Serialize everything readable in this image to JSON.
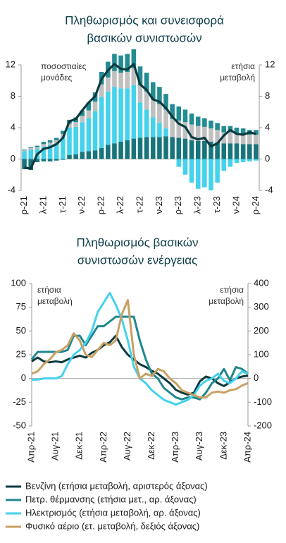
{
  "chart_data": [
    {
      "type": "bar",
      "stacked": true,
      "title": [
        "Πληθωρισμός και συνεισφορά",
        "βασικών συνιστωσών"
      ],
      "ylabel": [
        "ποσοστιαίες",
        "μονάδες"
      ],
      "y2label": [
        "ετήσια",
        "μεταβολή"
      ],
      "categories": [
        "ρ-21",
        null,
        null,
        "λ-21",
        null,
        null,
        "τ-21",
        null,
        null,
        "ν-22",
        null,
        null,
        "ρ-22",
        null,
        null,
        "λ-22",
        null,
        null,
        "τ-22",
        null,
        null,
        "ν-23",
        null,
        null,
        "ρ-23",
        null,
        null,
        "λ-23",
        null,
        null,
        "τ-23",
        null,
        null,
        "ν-24",
        null,
        null,
        "ρ-24"
      ],
      "ylim": [
        -4,
        12
      ],
      "yticks": [
        -4,
        0,
        4,
        8,
        12
      ],
      "y2lim": [
        -4,
        12
      ],
      "y2ticks": [
        -4,
        0,
        4,
        8,
        12
      ],
      "series": [
        {
          "color": "#17747b",
          "values": [
            -1.3,
            -1.4,
            -0.4,
            -0.3,
            -0.3,
            -0.2,
            -0.1,
            0.5,
            0.6,
            0.9,
            1.0,
            1.1,
            1.4,
            1.8,
            2.0,
            2.2,
            2.4,
            2.6,
            2.7,
            2.8,
            2.8,
            2.8,
            2.9,
            2.8,
            2.7,
            2.6,
            2.4,
            2.3,
            2.3,
            2.2,
            2.1,
            2.0,
            2.0,
            2.0,
            1.9,
            1.9,
            1.9
          ]
        },
        {
          "color": "#45d2ec",
          "values": [
            1.0,
            1.2,
            1.3,
            1.6,
            1.8,
            2.0,
            2.8,
            3.5,
            3.5,
            3.8,
            4.2,
            5.0,
            6.5,
            6.8,
            7.2,
            6.8,
            6.6,
            6.8,
            4.5,
            3.5,
            2.5,
            1.8,
            1.0,
            0.0,
            -1.0,
            -2.0,
            -3.0,
            -3.8,
            -3.6,
            -4.0,
            -3.0,
            -1.5,
            -1.0,
            -0.5,
            -0.4,
            -0.3,
            -0.2
          ]
        },
        {
          "color": "#c0c0c0",
          "values": [
            0.1,
            0.2,
            0.2,
            0.3,
            0.3,
            0.4,
            0.4,
            0.5,
            0.6,
            0.8,
            1.0,
            1.2,
            1.6,
            1.8,
            2.0,
            2.0,
            2.1,
            2.2,
            2.2,
            2.3,
            2.3,
            2.4,
            2.4,
            2.3,
            2.2,
            2.1,
            2.0,
            1.9,
            1.8,
            1.7,
            1.6,
            1.4,
            1.4,
            1.3,
            1.3,
            1.2,
            1.2
          ]
        },
        {
          "color": "#238c92",
          "values": [
            0.1,
            0.1,
            0.2,
            0.3,
            0.3,
            0.3,
            0.4,
            0.5,
            0.6,
            0.7,
            1.0,
            1.2,
            1.6,
            2.0,
            2.2,
            2.2,
            2.3,
            2.4,
            2.4,
            2.4,
            2.2,
            2.2,
            2.0,
            1.9,
            1.8,
            1.6,
            1.4,
            1.2,
            1.1,
            1.0,
            0.9,
            0.8,
            0.8,
            0.7,
            0.7,
            0.6,
            0.6
          ]
        },
        {
          "type": "line",
          "axis": "y2",
          "color": "#0b3a3f",
          "values": [
            -1.1,
            -1.2,
            0.6,
            1.3,
            1.5,
            1.9,
            2.7,
            4.8,
            5.1,
            6.2,
            7.2,
            8.0,
            10.2,
            11.3,
            12.1,
            11.5,
            11.4,
            12.1,
            9.5,
            8.8,
            7.6,
            7.3,
            6.5,
            5.4,
            4.5,
            4.1,
            2.8,
            2.5,
            2.7,
            1.6,
            2.0,
            3.0,
            3.7,
            3.2,
            3.1,
            3.4,
            3.2
          ]
        }
      ]
    },
    {
      "type": "line",
      "title": [
        "Πληθωρισμός βασικών",
        "συνιστωσών ενέργειας"
      ],
      "ylabel": [
        "ετήσια",
        "μεταβολή"
      ],
      "y2label": [
        "ετήσια",
        "μεταβολή"
      ],
      "categories": [
        "Απρ-21",
        null,
        null,
        null,
        "Αυγ-21",
        null,
        null,
        null,
        "Δεκ-21",
        null,
        null,
        null,
        "Απρ-22",
        null,
        null,
        null,
        "Αυγ-22",
        null,
        null,
        null,
        "Δεκ-22",
        null,
        null,
        null,
        "Απρ-23",
        null,
        null,
        null,
        "Αυγ-23",
        null,
        null,
        null,
        "Δεκ-23",
        null,
        null,
        null,
        "Απρ-24"
      ],
      "ylim": [
        -50,
        100
      ],
      "yticks": [
        -50,
        -25,
        0,
        25,
        50,
        75,
        100
      ],
      "y2lim": [
        -200,
        400
      ],
      "y2ticks": [
        -200,
        -100,
        0,
        100,
        200,
        300,
        400
      ],
      "series": [
        {
          "name": "Βενζίνη (ετήσια μεταβολή, αριστερός άξονας)",
          "color": "#0b3a3f",
          "values": [
            18,
            22,
            18,
            17,
            18,
            17,
            20,
            22,
            24,
            22,
            27,
            30,
            35,
            38,
            45,
            33,
            25,
            20,
            15,
            12,
            8,
            5,
            0,
            -5,
            -12,
            -15,
            -17,
            -15,
            -3,
            2,
            0,
            -5,
            -8,
            -4,
            0,
            2,
            3
          ]
        },
        {
          "name": "Πετρ. θέρμανσης (ετήσια μετ., αρ. άξονας)",
          "color": "#1f878d",
          "values": [
            20,
            28,
            28,
            28,
            28,
            28,
            30,
            45,
            45,
            35,
            45,
            55,
            55,
            60,
            65,
            65,
            65,
            65,
            40,
            20,
            5,
            0,
            -10,
            -15,
            -20,
            -22,
            -20,
            -20,
            -22,
            -15,
            -5,
            0,
            10,
            -2,
            12,
            10,
            5
          ]
        },
        {
          "name": "Ηλεκτρισμός (ετήσια μεταβολή, αρ. άξονας)",
          "axis": "y2",
          "color": "#45d2ec",
          "values": [
            -5,
            -5,
            0,
            0,
            0,
            10,
            60,
            100,
            120,
            150,
            200,
            280,
            320,
            360,
            310,
            250,
            160,
            50,
            0,
            -20,
            -50,
            -70,
            -90,
            -100,
            -110,
            -100,
            -90,
            -70,
            -30,
            -10,
            0,
            20,
            -10,
            -20,
            0,
            30,
            20
          ]
        },
        {
          "name": "Φυσικό αέριο (ετ. μεταβολή, δεξιός άξονας)",
          "axis": "y2",
          "color": "#c9a063",
          "values": [
            20,
            30,
            60,
            80,
            110,
            120,
            140,
            190,
            160,
            100,
            90,
            120,
            150,
            140,
            160,
            270,
            330,
            100,
            0,
            20,
            10,
            40,
            30,
            0,
            -20,
            -50,
            -60,
            -70,
            -80,
            -80,
            -60,
            -55,
            -60,
            -50,
            -45,
            -30,
            -20
          ]
        }
      ]
    }
  ]
}
